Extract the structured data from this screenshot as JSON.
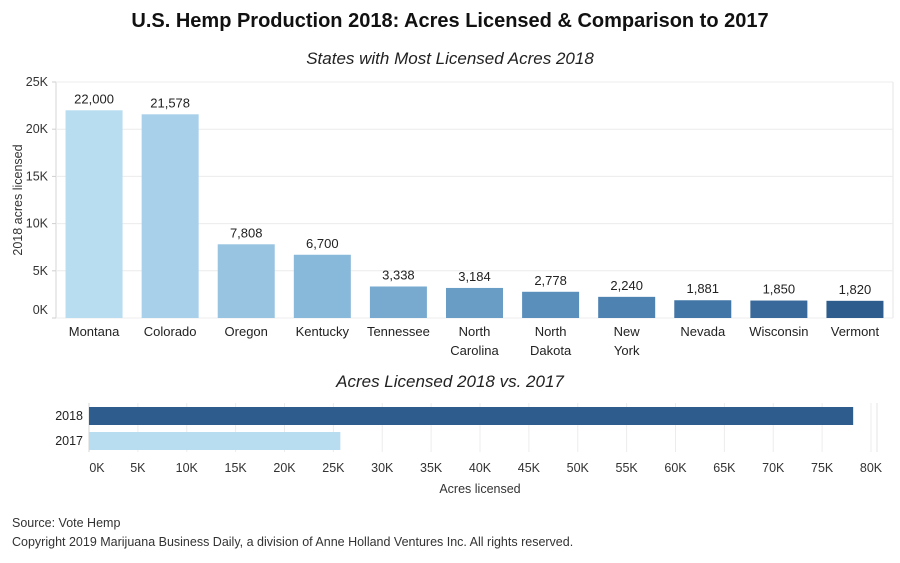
{
  "title": "U.S. Hemp Production 2018: Acres Licensed & Comparison to 2017",
  "chart_data": [
    {
      "type": "bar",
      "title": "States with Most Licensed Acres 2018",
      "xlabel": "",
      "ylabel": "2018 acres licensed",
      "categories": [
        "Montana",
        "Colorado",
        "Oregon",
        "Kentucky",
        "Tennessee",
        "North Carolina",
        "North Dakota",
        "New York",
        "Nevada",
        "Wisconsin",
        "Vermont"
      ],
      "values": [
        22000,
        21578,
        7808,
        6700,
        3338,
        3184,
        2778,
        2240,
        1881,
        1850,
        1820
      ],
      "value_labels": [
        "22,000",
        "21,578",
        "7,808",
        "6,700",
        "3,338",
        "3,184",
        "2,778",
        "2,240",
        "1,881",
        "1,850",
        "1,820"
      ],
      "ylim": [
        0,
        25000
      ],
      "yticks": [
        0,
        5000,
        10000,
        15000,
        20000,
        25000
      ],
      "ytick_labels": [
        "0K",
        "5K",
        "10K",
        "15K",
        "20K",
        "25K"
      ],
      "colors": [
        "#b8dcf0",
        "#a8d0ea",
        "#98c4e2",
        "#88b8da",
        "#78aad0",
        "#6a9dc6",
        "#5b8fbb",
        "#4e82b0",
        "#4276a6",
        "#38699a",
        "#2e5c8c"
      ]
    },
    {
      "type": "bar",
      "orientation": "horizontal",
      "title": "Acres Licensed 2018 vs. 2017",
      "xlabel": "Acres licensed",
      "categories": [
        "2018",
        "2017"
      ],
      "values": [
        78176,
        25713
      ],
      "xlim": [
        0,
        80000
      ],
      "xticks": [
        0,
        5000,
        10000,
        15000,
        20000,
        25000,
        30000,
        35000,
        40000,
        45000,
        50000,
        55000,
        60000,
        65000,
        70000,
        75000,
        80000
      ],
      "xtick_labels": [
        "0K",
        "5K",
        "10K",
        "15K",
        "20K",
        "25K",
        "30K",
        "35K",
        "40K",
        "45K",
        "50K",
        "55K",
        "60K",
        "65K",
        "70K",
        "75K",
        "80K"
      ],
      "colors": [
        "#2e5c8c",
        "#b8dcf0"
      ]
    }
  ],
  "footer": {
    "source": "Source: Vote Hemp",
    "copyright": "Copyright 2019 Marijuana Business Daily, a division of Anne Holland Ventures Inc. All rights reserved."
  }
}
